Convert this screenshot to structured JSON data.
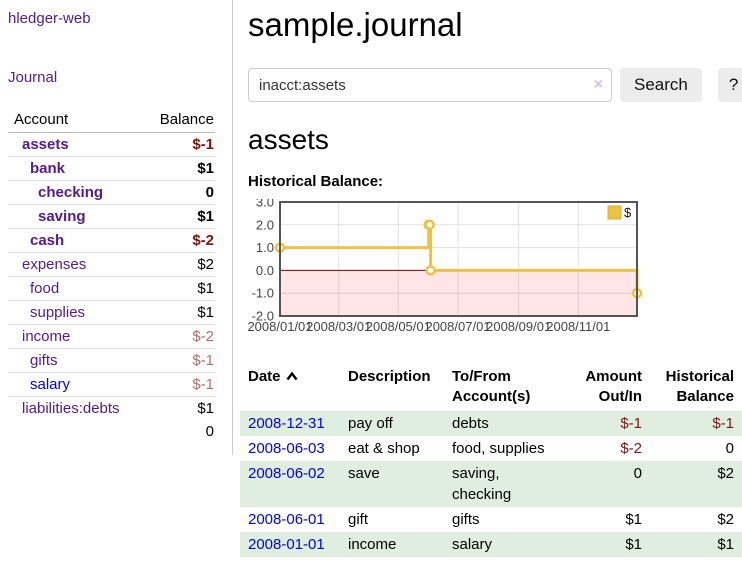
{
  "sidebar": {
    "brand": "hledger-web",
    "journal_link": "Journal",
    "accounts_table": {
      "headers": [
        "Account",
        "Balance"
      ],
      "rows": [
        {
          "account": "assets",
          "indent": 1,
          "bold": true,
          "balance": "$-1",
          "balance_style": "neg-strong"
        },
        {
          "account": "bank",
          "indent": 2,
          "bold": true,
          "balance": "$1",
          "balance_style": "pos-strong"
        },
        {
          "account": "checking",
          "indent": 3,
          "bold": true,
          "balance": "0",
          "balance_style": "pos-strong"
        },
        {
          "account": "saving",
          "indent": 3,
          "bold": true,
          "balance": "$1",
          "balance_style": "pos-strong"
        },
        {
          "account": "cash",
          "indent": 2,
          "bold": true,
          "balance": "$-2",
          "balance_style": "neg-strong"
        },
        {
          "account": "expenses",
          "indent": 1,
          "bold": false,
          "balance": "$2",
          "balance_style": "pos"
        },
        {
          "account": "food",
          "indent": 2,
          "bold": false,
          "balance": "$1",
          "balance_style": "pos"
        },
        {
          "account": "supplies",
          "indent": 2,
          "bold": false,
          "balance": "$1",
          "balance_style": "pos"
        },
        {
          "account": "income",
          "indent": 1,
          "bold": false,
          "balance": "$-2",
          "balance_style": "neg"
        },
        {
          "account": "gifts",
          "indent": 2,
          "bold": false,
          "balance": "$-1",
          "balance_style": "neg"
        },
        {
          "account": "salary",
          "indent": 2,
          "bold": false,
          "link_color": "blue",
          "balance": "$-1",
          "balance_style": "neg"
        },
        {
          "account": "liabilities:debts",
          "indent": 1,
          "bold": false,
          "balance": "$1",
          "balance_style": "pos"
        }
      ],
      "total": "0"
    }
  },
  "main": {
    "title": "sample.journal",
    "search": {
      "value": "inacct:assets",
      "clear_icon": "×",
      "button_label": "Search",
      "help_label": "?"
    },
    "account_heading": "assets",
    "chart_label": "Historical Balance:"
  },
  "chart_data": {
    "type": "line",
    "title": "Historical Balance",
    "step": true,
    "series": [
      {
        "name": "$",
        "points": [
          {
            "x": "2008-01-01",
            "y": 1
          },
          {
            "x": "2008-06-01",
            "y": 2
          },
          {
            "x": "2008-06-02",
            "y": 2
          },
          {
            "x": "2008-06-03",
            "y": 0
          },
          {
            "x": "2008-12-31",
            "y": -1
          }
        ]
      }
    ],
    "x_range": [
      "2008-01-01",
      "2008-12-31"
    ],
    "ylim": [
      -2,
      3
    ],
    "x_ticks": [
      "2008/01/01",
      "2008/03/01",
      "2008/05/01",
      "2008/07/01",
      "2008/09/01",
      "2008/11/01"
    ],
    "y_ticks": [
      3.0,
      2.0,
      1.0,
      0.0,
      -1.0,
      -2.0
    ],
    "legend": {
      "label": "$",
      "position": "top-right",
      "swatch_color": "#edc240"
    },
    "grid": true,
    "line_color": "#edc240",
    "marker_fill": "#ffffff",
    "zero_line_color": "#8b0000",
    "negative_region_fill": "rgba(255,0,0,0.10)",
    "plot_border_color": "#555555",
    "gridline_color": "#e2e2e2",
    "tick_label_color": "#444444"
  },
  "transactions": {
    "headers": [
      {
        "lines": [
          "Date"
        ],
        "align": "left",
        "sorted": "asc"
      },
      {
        "lines": [
          "Description"
        ],
        "align": "left"
      },
      {
        "lines": [
          "To/From",
          "Account(s)"
        ],
        "align": "left"
      },
      {
        "lines": [
          "Amount",
          "Out/In"
        ],
        "align": "right"
      },
      {
        "lines": [
          "Historical",
          "Balance"
        ],
        "align": "right"
      }
    ],
    "rows": [
      {
        "date": "2008-12-31",
        "description": "pay off",
        "accounts": "debts",
        "amount": "$-1",
        "amount_neg": true,
        "balance": "$-1",
        "balance_neg": true,
        "zebra": true
      },
      {
        "date": "2008-06-03",
        "description": "eat & shop",
        "accounts": "food, supplies",
        "amount": "$-2",
        "amount_neg": true,
        "balance": "0",
        "balance_neg": false,
        "zebra": false
      },
      {
        "date": "2008-06-02",
        "description": "save",
        "accounts": "saving, checking",
        "amount": "0",
        "amount_neg": false,
        "balance": "$2",
        "balance_neg": false,
        "zebra": true
      },
      {
        "date": "2008-06-01",
        "description": "gift",
        "accounts": "gifts",
        "amount": "$1",
        "amount_neg": false,
        "balance": "$2",
        "balance_neg": false,
        "zebra": false
      },
      {
        "date": "2008-01-01",
        "description": "income",
        "accounts": "salary",
        "amount": "$1",
        "amount_neg": false,
        "balance": "$1",
        "balance_neg": false,
        "zebra": true
      }
    ]
  }
}
